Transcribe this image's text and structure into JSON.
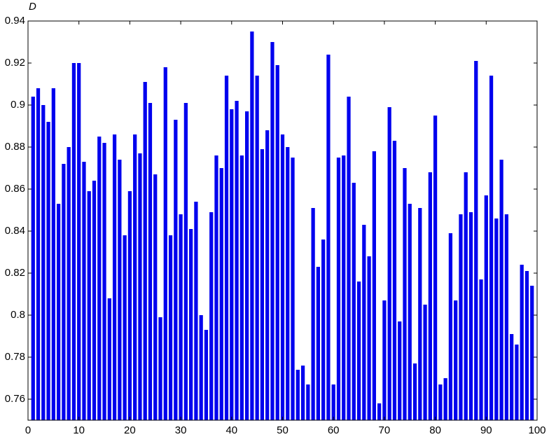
{
  "chart_data": {
    "type": "bar",
    "y_label": "D",
    "color": "#0000ee",
    "x": [
      1,
      2,
      3,
      4,
      5,
      6,
      7,
      8,
      9,
      10,
      11,
      12,
      13,
      14,
      15,
      16,
      17,
      18,
      19,
      20,
      21,
      22,
      23,
      24,
      25,
      26,
      27,
      28,
      29,
      30,
      31,
      32,
      33,
      34,
      35,
      36,
      37,
      38,
      39,
      40,
      41,
      42,
      43,
      44,
      45,
      46,
      47,
      48,
      49,
      50,
      51,
      52,
      53,
      54,
      55,
      56,
      57,
      58,
      59,
      60,
      61,
      62,
      63,
      64,
      65,
      66,
      67,
      68,
      69,
      70,
      71,
      72,
      73,
      74,
      75,
      76,
      77,
      78,
      79,
      80,
      81,
      82,
      83,
      84,
      85,
      86,
      87,
      88,
      89,
      90,
      91,
      92,
      93,
      94,
      95,
      96,
      97,
      98,
      99
    ],
    "values": [
      0.904,
      0.908,
      0.9,
      0.892,
      0.908,
      0.853,
      0.872,
      0.88,
      0.92,
      0.92,
      0.873,
      0.859,
      0.864,
      0.885,
      0.882,
      0.808,
      0.886,
      0.874,
      0.838,
      0.859,
      0.886,
      0.877,
      0.911,
      0.901,
      0.867,
      0.799,
      0.918,
      0.838,
      0.893,
      0.848,
      0.901,
      0.841,
      0.854,
      0.8,
      0.793,
      0.849,
      0.876,
      0.87,
      0.914,
      0.898,
      0.902,
      0.876,
      0.897,
      0.935,
      0.914,
      0.879,
      0.888,
      0.93,
      0.919,
      0.886,
      0.88,
      0.875,
      0.774,
      0.776,
      0.767,
      0.851,
      0.823,
      0.836,
      0.924,
      0.767,
      0.875,
      0.876,
      0.904,
      0.863,
      0.816,
      0.843,
      0.828,
      0.878,
      0.758,
      0.807,
      0.899,
      0.883,
      0.797,
      0.87,
      0.853,
      0.777,
      0.851,
      0.805,
      0.868,
      0.895,
      0.767,
      0.77,
      0.839,
      0.807,
      0.848,
      0.868,
      0.849,
      0.921,
      0.817,
      0.857,
      0.914,
      0.846,
      0.874,
      0.848,
      0.791,
      0.786,
      0.824,
      0.821,
      0.814
    ],
    "xlim": [
      0,
      100
    ],
    "xticks": [
      0,
      10,
      20,
      30,
      40,
      50,
      60,
      70,
      80,
      90,
      100
    ],
    "ylim": [
      0.75,
      0.94
    ],
    "yticks": [
      0.76,
      0.78,
      0.8,
      0.82,
      0.84,
      0.86,
      0.88,
      0.9,
      0.92,
      0.94
    ]
  }
}
